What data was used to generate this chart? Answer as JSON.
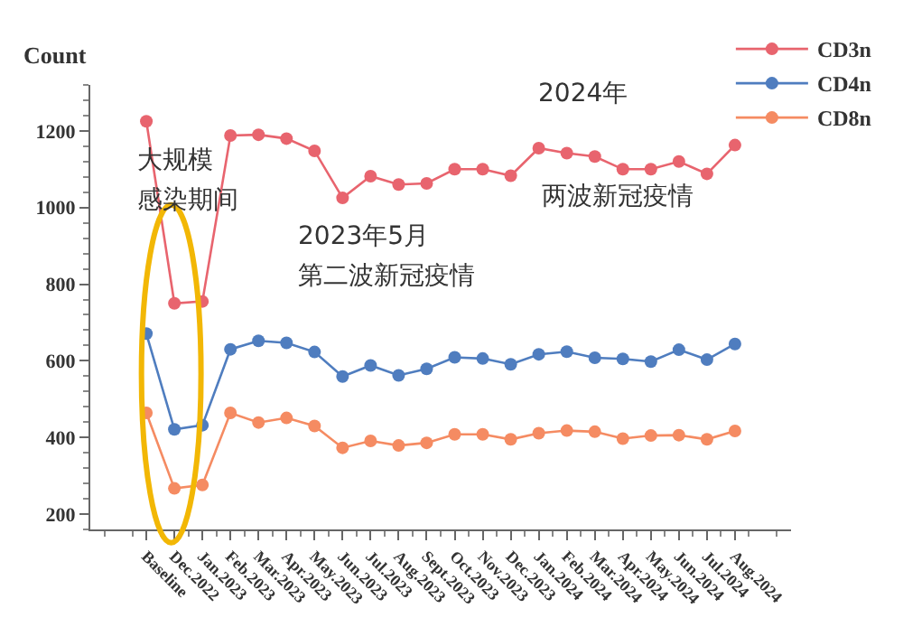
{
  "chart_data": {
    "type": "line",
    "ylabel": "Count",
    "categories": [
      "Baseline",
      "Dec.2022",
      "Jan.2023",
      "Feb.2023",
      "Mar.2023",
      "Apr.2023",
      "May.2023",
      "Jun.2023",
      "Jul.2023",
      "Aug.2023",
      "Sept.2023",
      "Oct.2023",
      "Nov.2023",
      "Dec.2023",
      "Jan.2024",
      "Feb.2024",
      "Mar.2024",
      "Apr.2024",
      "May.2024",
      "Jun.2024",
      "Jul.2024",
      "Aug.2024"
    ],
    "series": [
      {
        "name": "CD3n",
        "color": "#e8646e",
        "values": [
          1225,
          750,
          755,
          1188,
          1190,
          1180,
          1148,
          1025,
          1082,
          1060,
          1063,
          1100,
          1100,
          1083,
          1155,
          1142,
          1133,
          1100,
          1100,
          1120,
          1088,
          1163
        ]
      },
      {
        "name": "CD4n",
        "color": "#4f7dbf",
        "values": [
          671,
          421,
          432,
          630,
          652,
          647,
          623,
          559,
          588,
          562,
          579,
          609,
          606,
          591,
          617,
          624,
          608,
          605,
          598,
          629,
          603,
          644
        ]
      },
      {
        "name": "CD8n",
        "color": "#f58b62",
        "values": [
          464,
          267,
          276,
          464,
          439,
          451,
          430,
          373,
          391,
          379,
          386,
          408,
          408,
          395,
          411,
          418,
          415,
          397,
          405,
          406,
          395,
          417
        ]
      }
    ],
    "ylim": [
      160,
      1320
    ],
    "yticks": [
      200,
      400,
      600,
      800,
      1000,
      1200
    ],
    "annotations": [
      "大规模",
      "感染期间",
      "2023年5月",
      "第二波新冠疫情",
      "2024年",
      "两波新冠疫情"
    ],
    "grid": false,
    "legend": "top right",
    "marker": "circle",
    "line_style": "solid"
  }
}
